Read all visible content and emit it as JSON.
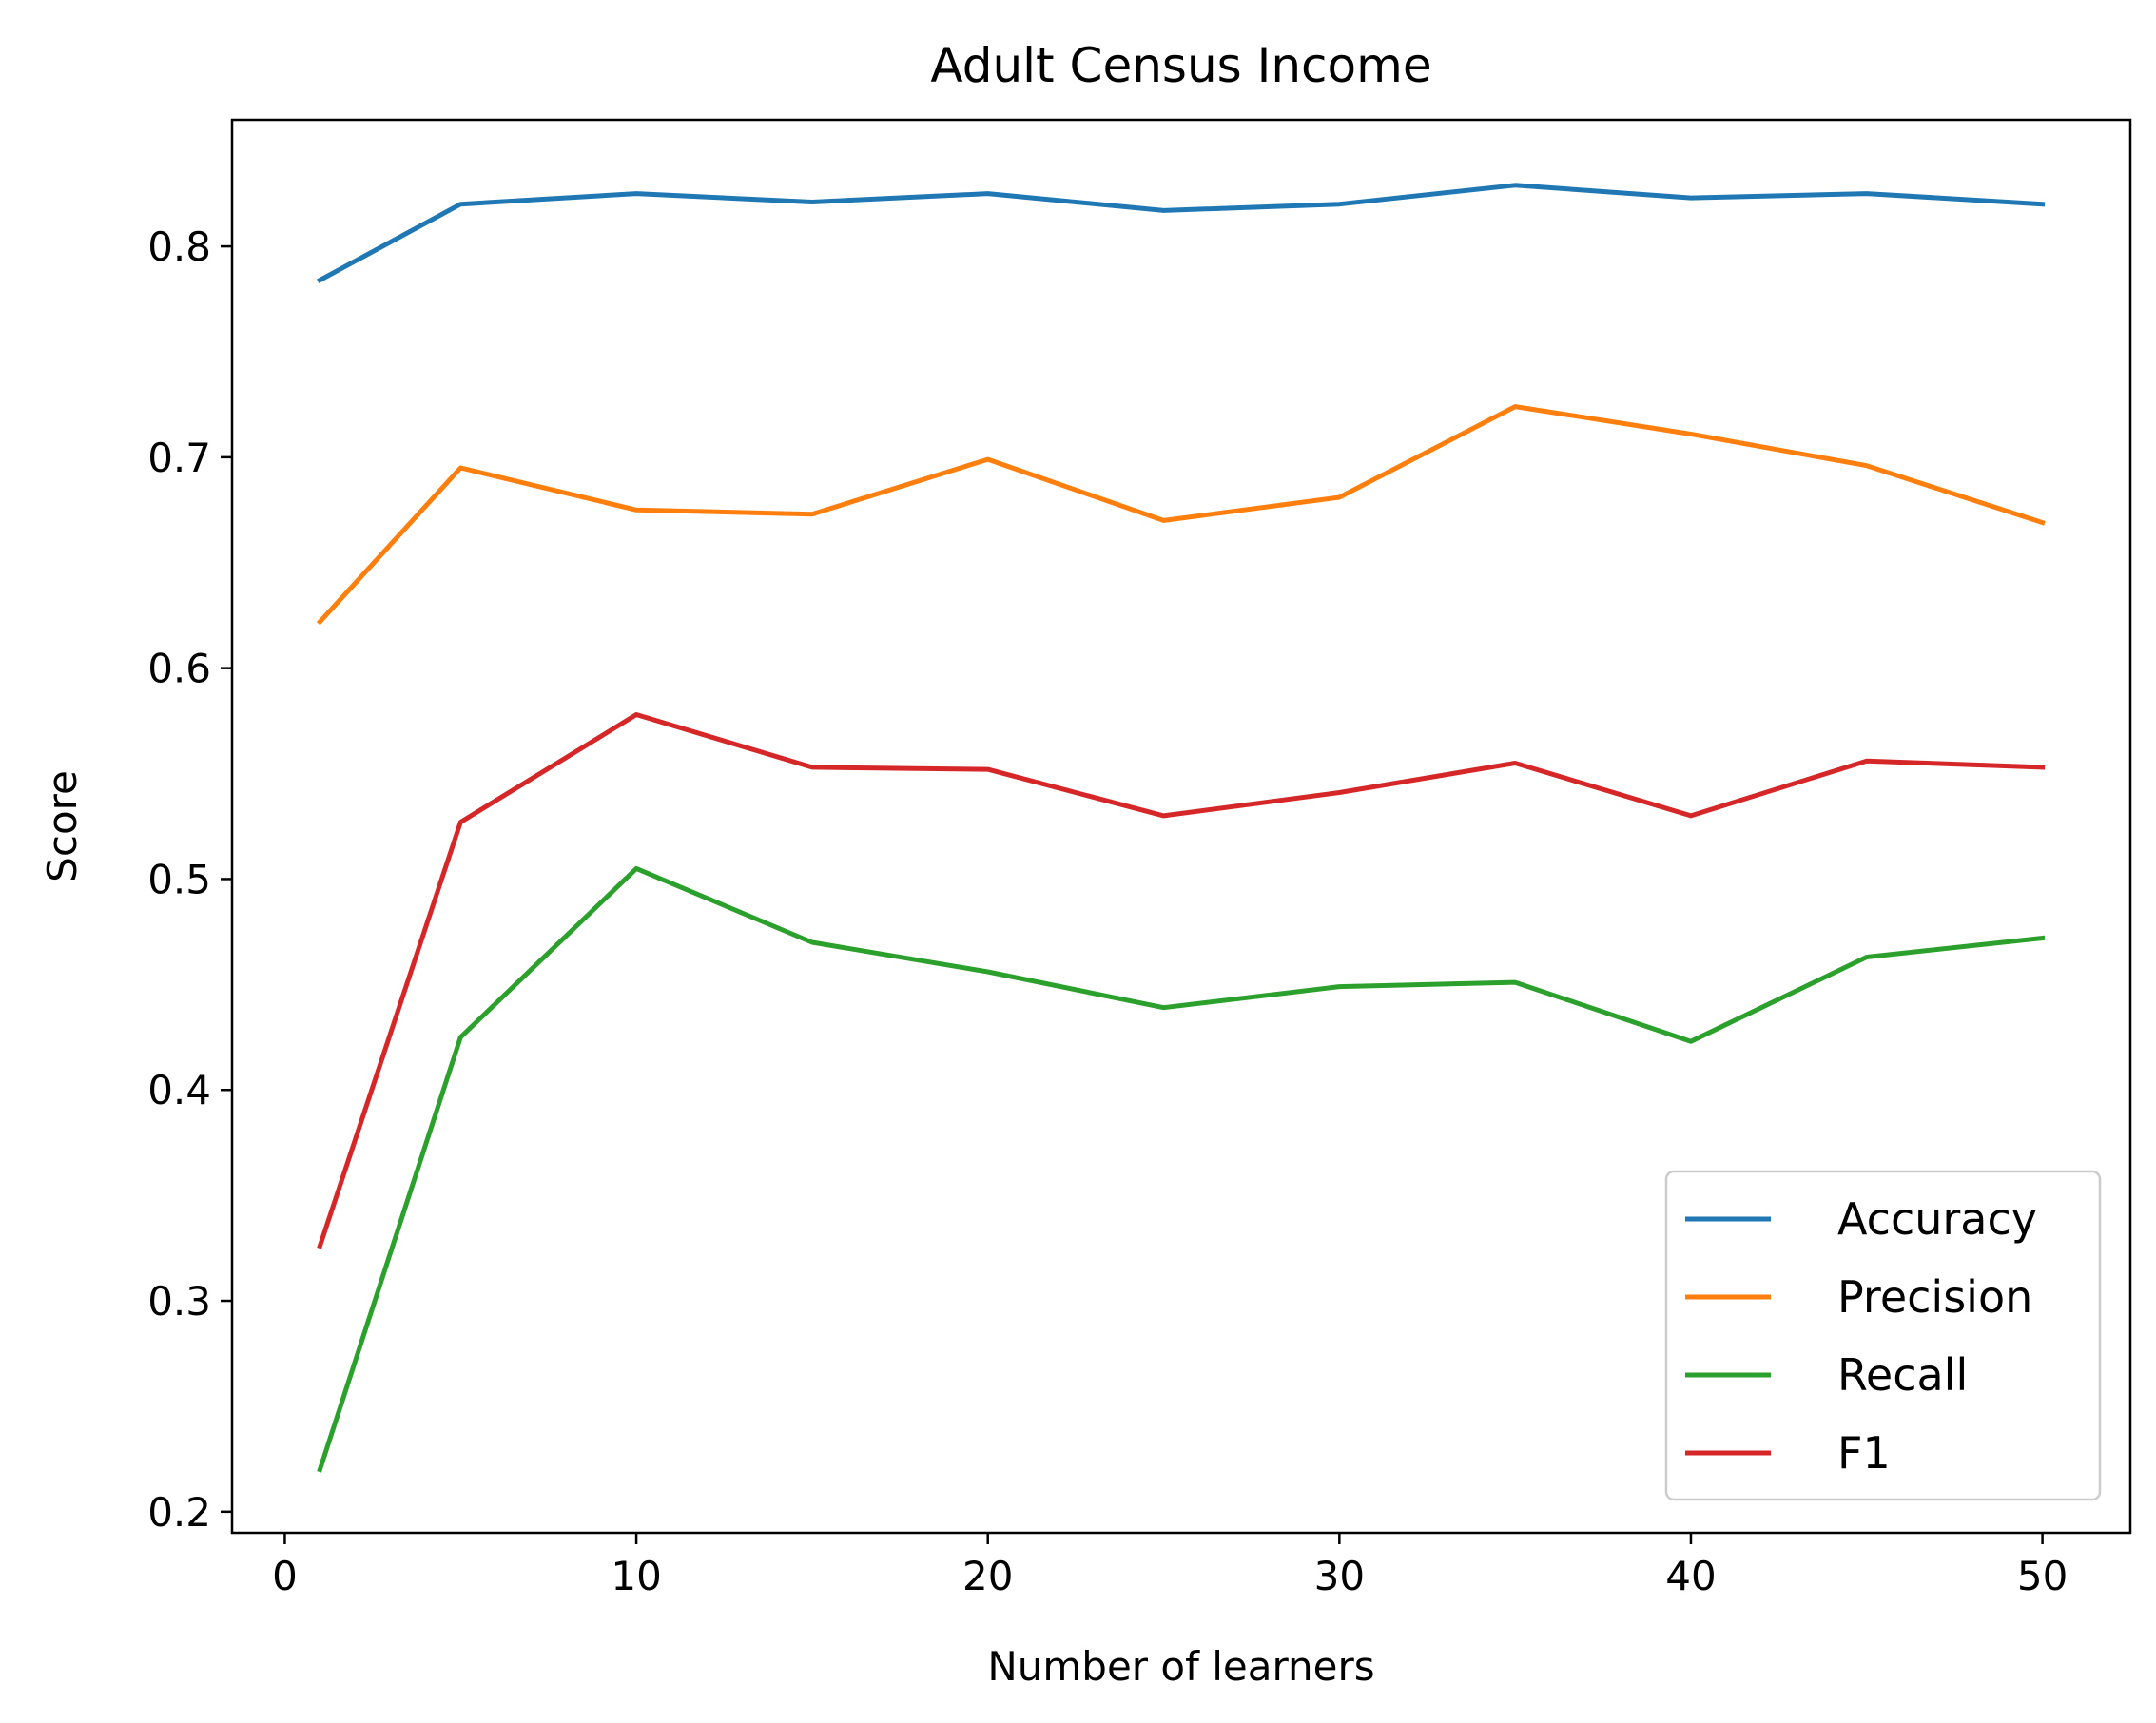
{
  "chart_data": {
    "type": "line",
    "title": "Adult Census Income",
    "xlabel": "Number of learners",
    "ylabel": "Score",
    "xlim": [
      -1.5,
      52.5
    ],
    "ylim": [
      0.19,
      0.86
    ],
    "xticks": [
      0,
      10,
      20,
      30,
      40,
      50
    ],
    "yticks": [
      0.2,
      0.3,
      0.4,
      0.5,
      0.6,
      0.7,
      0.8
    ],
    "x": [
      1,
      5,
      10,
      15,
      20,
      25,
      30,
      35,
      40,
      45,
      50
    ],
    "grid": false,
    "legend_position": "lower-right",
    "series": [
      {
        "name": "Accuracy",
        "color": "#1f77b4",
        "values": [
          0.784,
          0.82,
          0.825,
          0.821,
          0.825,
          0.817,
          0.82,
          0.829,
          0.823,
          0.825,
          0.82
        ]
      },
      {
        "name": "Precision",
        "color": "#ff7f0e",
        "values": [
          0.622,
          0.695,
          0.675,
          0.673,
          0.699,
          0.67,
          0.681,
          0.724,
          0.711,
          0.696,
          0.669
        ]
      },
      {
        "name": "Recall",
        "color": "#2ca02c",
        "values": [
          0.22,
          0.425,
          0.505,
          0.47,
          0.456,
          0.439,
          0.449,
          0.451,
          0.423,
          0.463,
          0.472
        ]
      },
      {
        "name": "F1",
        "color": "#d62728",
        "values": [
          0.326,
          0.527,
          0.578,
          0.553,
          0.552,
          0.53,
          0.541,
          0.555,
          0.53,
          0.556,
          0.553
        ]
      }
    ]
  }
}
